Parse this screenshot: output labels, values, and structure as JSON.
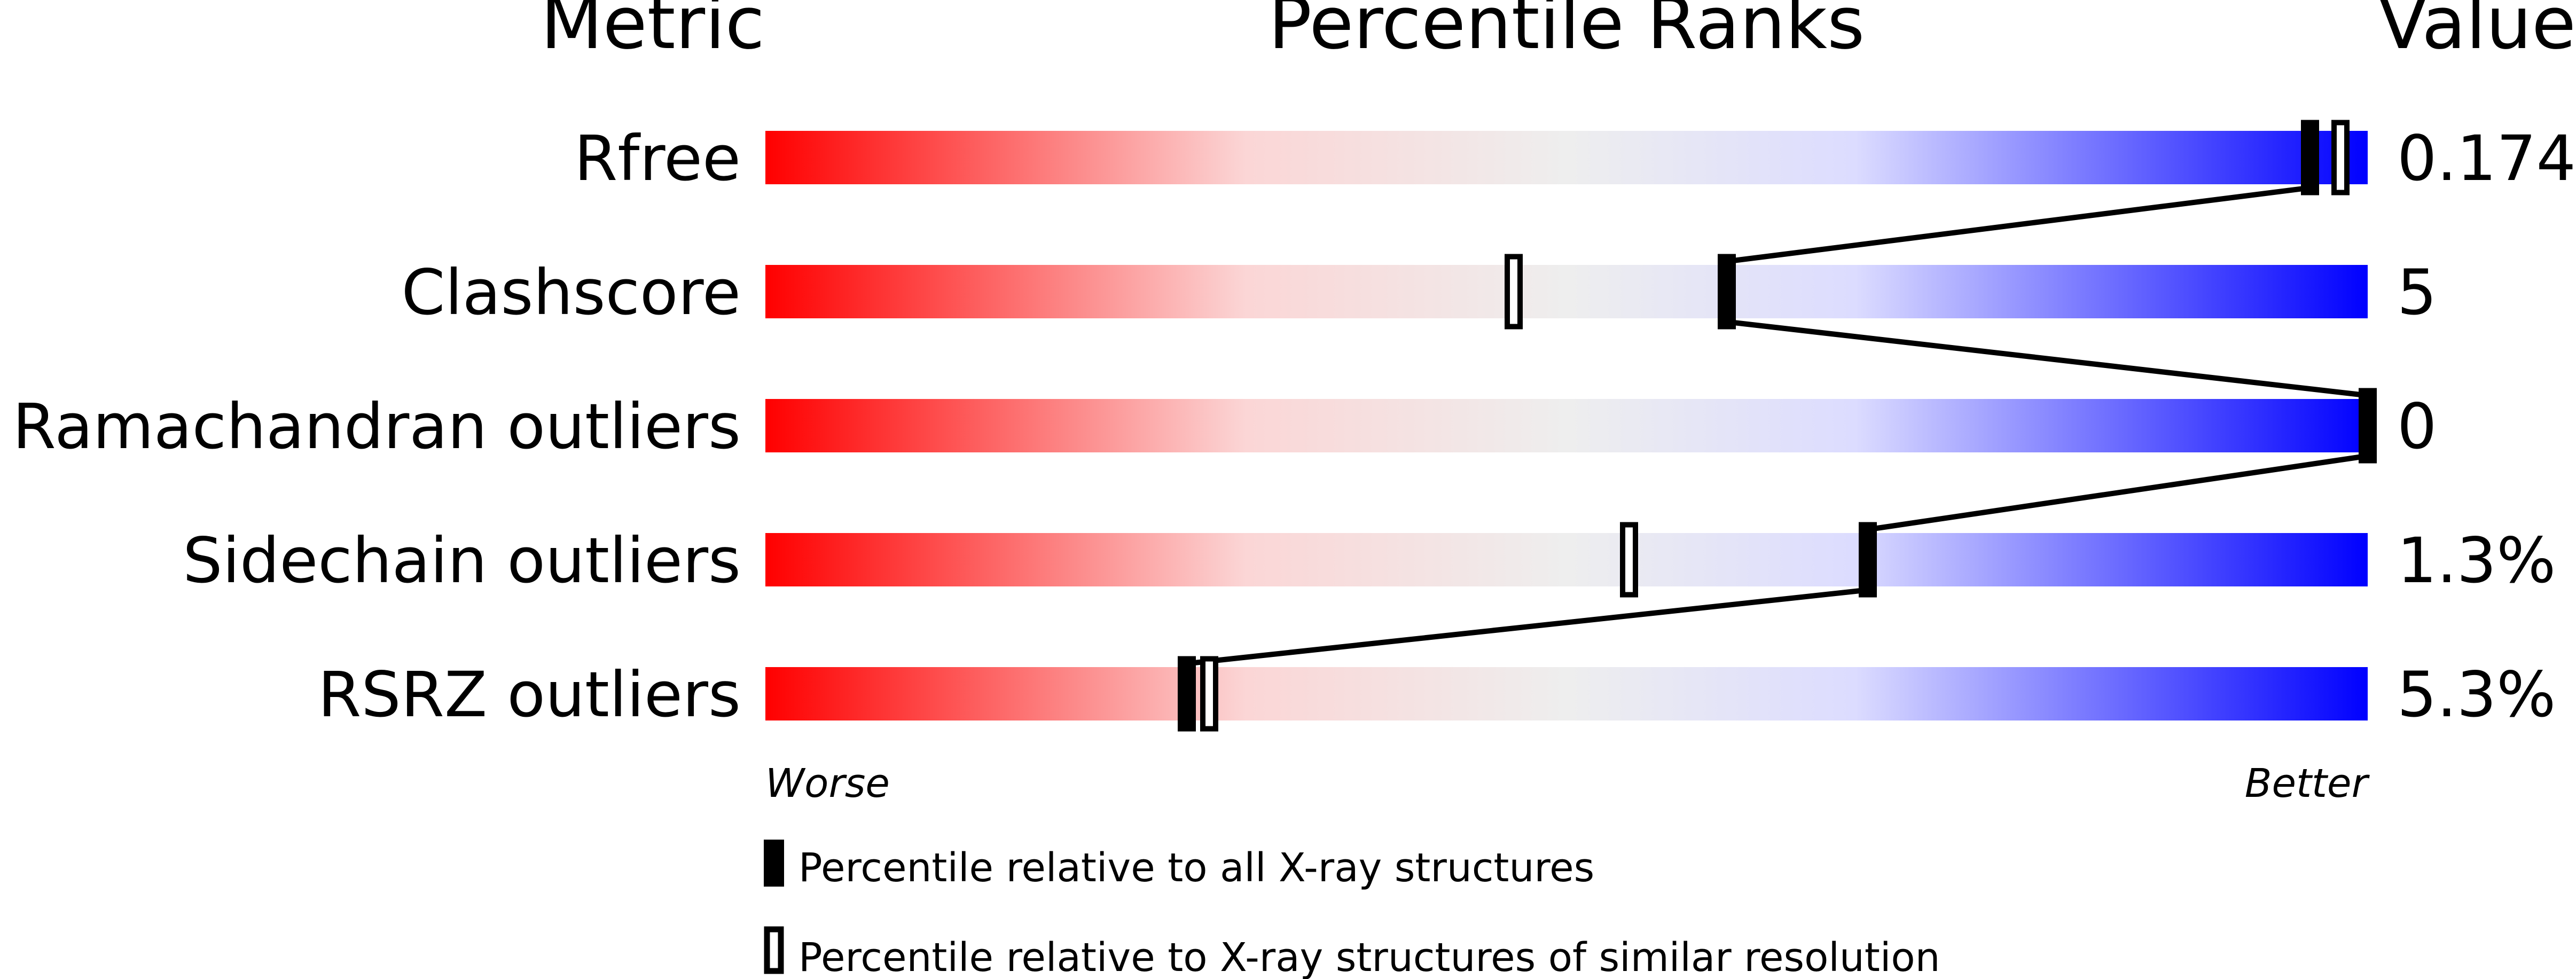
{
  "headers": {
    "metric": "Metric",
    "percentile": "Percentile Ranks",
    "value": "Value"
  },
  "axis": {
    "worse": "Worse",
    "better": "Better"
  },
  "legend": {
    "filled": "Percentile relative to all X-ray structures",
    "open": "Percentile relative to X-ray structures of similar resolution"
  },
  "colors": {
    "worse": "#ff0000",
    "middle": "#eeeeee",
    "better": "#0000ff",
    "marker": "#000000"
  },
  "chart_data": {
    "type": "percentile-slider",
    "xlim": [
      0,
      100
    ],
    "metrics": [
      {
        "label": "Rfree",
        "value": "0.174",
        "percentile_all": 96.4,
        "percentile_similar": 98.3
      },
      {
        "label": "Clashscore",
        "value": "5",
        "percentile_all": 60.0,
        "percentile_similar": 46.7
      },
      {
        "label": "Ramachandran outliers",
        "value": "0",
        "percentile_all": 100,
        "percentile_similar": null
      },
      {
        "label": "Sidechain outliers",
        "value": "1.3%",
        "percentile_all": 68.8,
        "percentile_similar": 53.9
      },
      {
        "label": "RSRZ outliers",
        "value": "5.3%",
        "percentile_all": 26.3,
        "percentile_similar": 27.7
      }
    ]
  }
}
